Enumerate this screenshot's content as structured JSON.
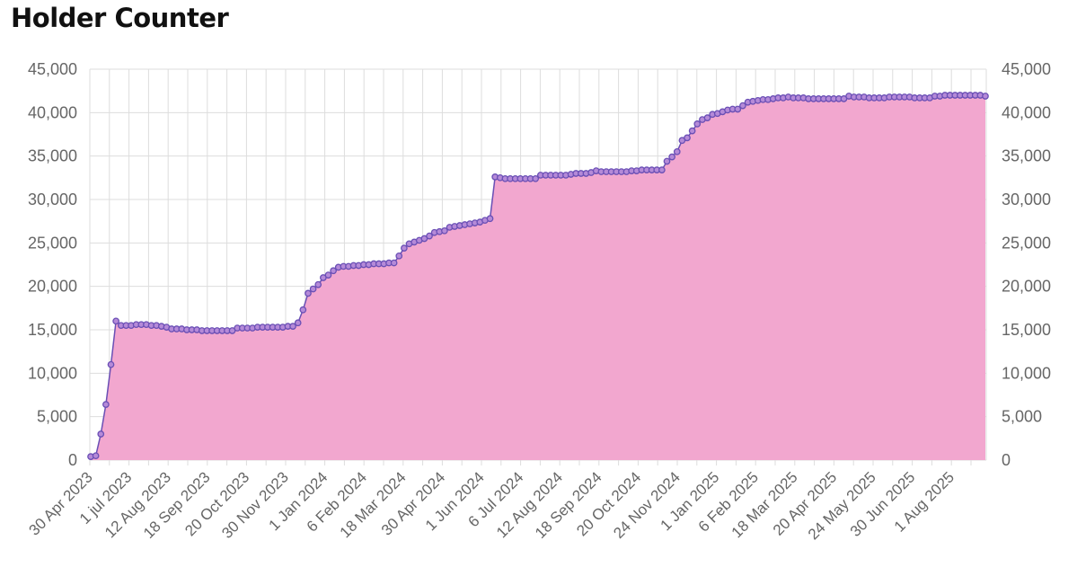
{
  "chart_data": {
    "type": "area",
    "title": "Holder Counter",
    "xlabel": "",
    "ylabel": "",
    "ylim": [
      0,
      45000
    ],
    "y_ticks": [
      "0",
      "5,000",
      "10,000",
      "15,000",
      "20,000",
      "25,000",
      "30,000",
      "35,000",
      "40,000",
      "45,000"
    ],
    "y_tick_values": [
      0,
      5000,
      10000,
      15000,
      20000,
      25000,
      30000,
      35000,
      40000,
      45000
    ],
    "x_ticks": [
      "30 Apr 2023",
      "1 jul 2023",
      "12 Aug 2023",
      "18 Sep 2023",
      "20 Oct 2023",
      "30 Nov 2023",
      "1 Jan 2024",
      "6 Feb 2024",
      "18 Mar 2024",
      "30 Apr 2024",
      "1 Jun 2024",
      "6 Jul 2024",
      "12 Aug 2024",
      "18 Sep 2024",
      "20 Oct 2024",
      "24 Nov 2024",
      "1 Jan 2025",
      "6 Feb 2025",
      "18 Mar 2025",
      "20 Apr 2025",
      "24 May 2025",
      "30 Jun 2025",
      "1 Aug 2025"
    ],
    "grid": true,
    "legend": "none",
    "colors": {
      "fill": "#f2a7cf",
      "line": "#6a4fb5",
      "point_fill": "#b58ad8",
      "grid": "#dddddd",
      "axis_text": "#666666"
    },
    "series": [
      {
        "values": [
          400,
          500,
          3000,
          6400,
          11000,
          16000,
          15500,
          15500,
          15500,
          15600,
          15600,
          15600,
          15500,
          15500,
          15400,
          15300,
          15100,
          15100,
          15100,
          15000,
          15000,
          15000,
          14900,
          14900,
          14900,
          14900,
          14900,
          14900,
          14900,
          15200,
          15200,
          15200,
          15200,
          15300,
          15300,
          15300,
          15300,
          15300,
          15300,
          15400,
          15400,
          15800,
          17300,
          19200,
          19700,
          20200,
          21000,
          21300,
          21800,
          22200,
          22300,
          22300,
          22400,
          22400,
          22500,
          22500,
          22600,
          22600,
          22600,
          22700,
          22700,
          23500,
          24400,
          24900,
          25100,
          25300,
          25500,
          25800,
          26200,
          26300,
          26400,
          26800,
          26900,
          27000,
          27100,
          27200,
          27300,
          27400,
          27600,
          27800,
          32600,
          32500,
          32400,
          32400,
          32400,
          32400,
          32400,
          32400,
          32400,
          32800,
          32800,
          32800,
          32800,
          32800,
          32800,
          32900,
          33000,
          33000,
          33000,
          33100,
          33300,
          33200,
          33200,
          33200,
          33200,
          33200,
          33200,
          33300,
          33300,
          33400,
          33400,
          33400,
          33400,
          33400,
          34400,
          34900,
          35500,
          36800,
          37100,
          37900,
          38700,
          39200,
          39400,
          39800,
          39900,
          40100,
          40300,
          40400,
          40400,
          40800,
          41200,
          41300,
          41400,
          41500,
          41500,
          41600,
          41700,
          41700,
          41800,
          41700,
          41700,
          41700,
          41600,
          41600,
          41600,
          41600,
          41600,
          41600,
          41600,
          41600,
          41900,
          41800,
          41800,
          41800,
          41700,
          41700,
          41700,
          41700,
          41800,
          41800,
          41800,
          41800,
          41800,
          41700,
          41700,
          41700,
          41700,
          41900,
          41900,
          42000,
          42000,
          42000,
          42000,
          42000,
          42000,
          42000,
          42000,
          41900
        ]
      }
    ]
  }
}
